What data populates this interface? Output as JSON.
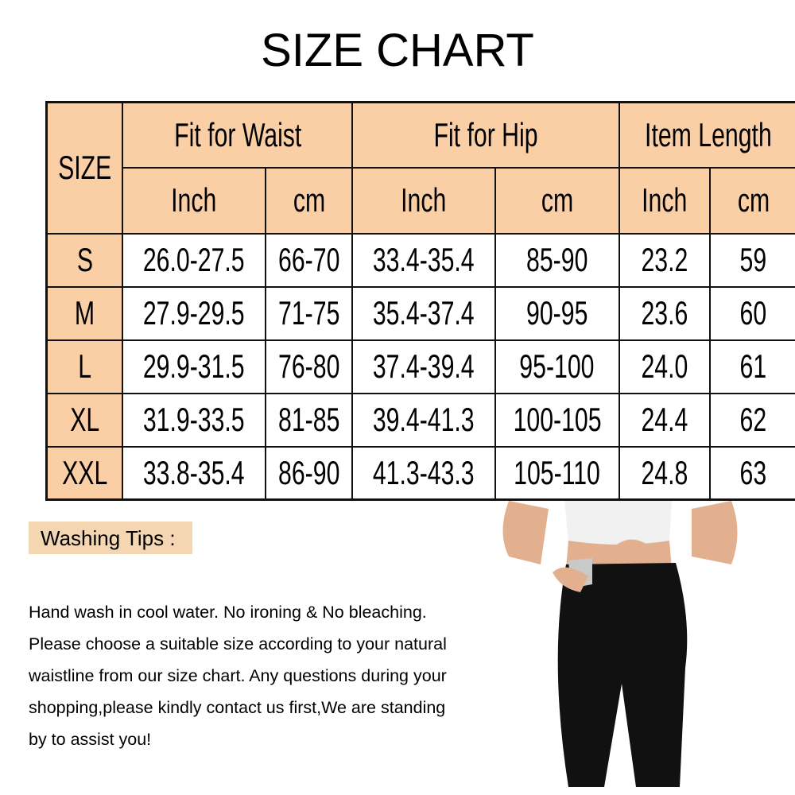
{
  "title": "SIZE CHART",
  "table": {
    "size_header": "SIZE",
    "groups": [
      "Fit for Waist",
      "Fit for Hip",
      "Item Length"
    ],
    "units": [
      "Inch",
      "cm",
      "Inch",
      "cm",
      "Inch",
      "cm"
    ],
    "rows": [
      [
        "S",
        "26.0-27.5",
        "66-70",
        "33.4-35.4",
        "85-90",
        "23.2",
        "59"
      ],
      [
        "M",
        "27.9-29.5",
        "71-75",
        "35.4-37.4",
        "90-95",
        "23.6",
        "60"
      ],
      [
        "L",
        "29.9-31.5",
        "76-80",
        "37.4-39.4",
        "95-100",
        "24.0",
        "61"
      ],
      [
        "XL",
        "31.9-33.5",
        "81-85",
        "39.4-41.3",
        "100-105",
        "24.4",
        "62"
      ],
      [
        "XXL",
        "33.8-35.4",
        "86-90",
        "41.3-43.3",
        "105-110",
        "24.8",
        "63"
      ]
    ]
  },
  "washing_tips": {
    "label": "Washing Tips :",
    "lines": [
      "Hand wash in cool water. No ironing & No bleaching.",
      "Please choose a suitable size according to your natural",
      "waistline from our size chart. Any questions during your",
      "shopping,please kindly contact us first,We are standing",
      "by to assist you!"
    ]
  },
  "colors": {
    "header_fill": "#fbcfa5",
    "tips_fill": "#f5d6b3",
    "garment": "#111111"
  }
}
